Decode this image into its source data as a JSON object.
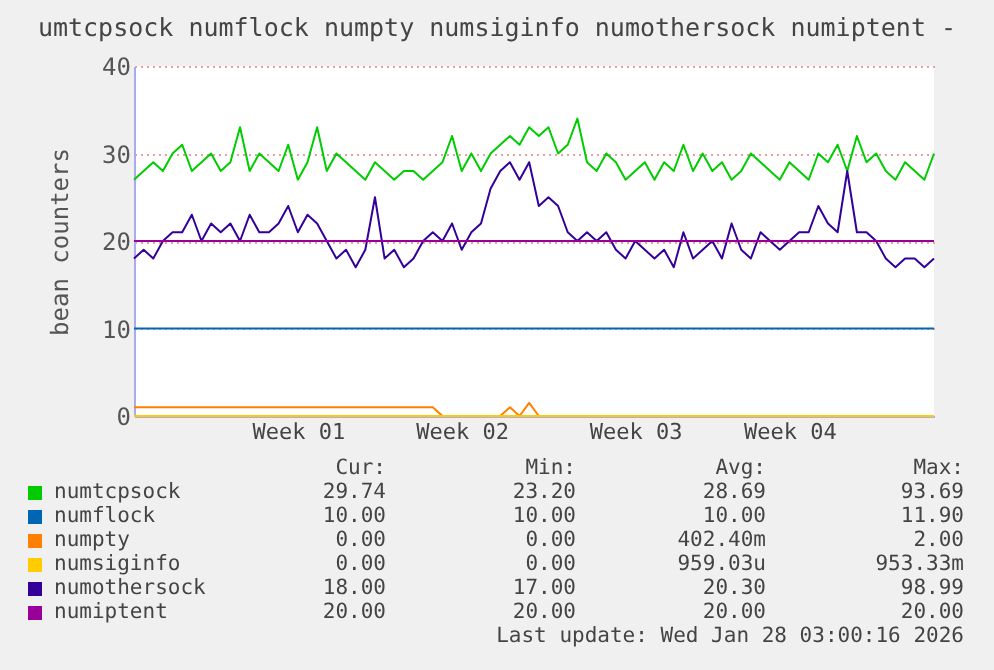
{
  "chart_data": {
    "type": "line",
    "title": "umtcpsock numflock numpty numsiginfo numothersock numiptent -",
    "ylabel": "bean counters",
    "categories": [
      null,
      null,
      null,
      null,
      null,
      null,
      null,
      null,
      null,
      null,
      null,
      null,
      null,
      null,
      null,
      null,
      null,
      "Week 01",
      null,
      null,
      null,
      null,
      null,
      null,
      null,
      null,
      null,
      null,
      null,
      null,
      null,
      null,
      null,
      null,
      "Week 02",
      null,
      null,
      null,
      null,
      null,
      null,
      null,
      null,
      null,
      null,
      null,
      null,
      null,
      null,
      null,
      null,
      null,
      "Week 03",
      null,
      null,
      null,
      null,
      null,
      null,
      null,
      null,
      null,
      null,
      null,
      null,
      null,
      null,
      null,
      "Week 04",
      null,
      null,
      null,
      null,
      null,
      null,
      null,
      null,
      null,
      null,
      null,
      null,
      null,
      null,
      null
    ],
    "ylim": [
      0,
      40
    ],
    "yticks": [
      0,
      10,
      20,
      30,
      40
    ],
    "grid": "y",
    "legend": "bottom",
    "marker": "none",
    "line_style": "solid",
    "series": [
      {
        "name": "numtcpsock",
        "color": "#00cc00",
        "values": [
          27,
          28,
          29,
          28,
          30,
          31,
          28,
          29,
          30,
          28,
          29,
          33,
          28,
          30,
          29,
          28,
          31,
          27,
          29,
          33,
          28,
          30,
          29,
          28,
          27,
          29,
          28,
          27,
          28,
          28,
          27,
          28,
          29,
          32,
          28,
          30,
          28,
          30,
          31,
          32,
          31,
          33,
          32,
          33,
          30,
          31,
          34,
          29,
          28,
          30,
          29,
          27,
          28,
          29,
          27,
          29,
          28,
          31,
          28,
          30,
          28,
          29,
          27,
          28,
          30,
          29,
          28,
          27,
          29,
          28,
          27,
          30,
          29,
          31,
          28,
          32,
          29,
          30,
          28,
          27,
          29,
          28,
          27,
          30
        ]
      },
      {
        "name": "numflock",
        "color": "#0066b3",
        "values": [
          10,
          10,
          10,
          10,
          10,
          10,
          10,
          10,
          10,
          10,
          10,
          10,
          10,
          10,
          10,
          10,
          10,
          10,
          10,
          10,
          10,
          10,
          10,
          10,
          10,
          10,
          10,
          10,
          10,
          10,
          10,
          10,
          10,
          10,
          10,
          10,
          10,
          10,
          10,
          10,
          10,
          10,
          10,
          10,
          10,
          10,
          10,
          10,
          10,
          10,
          10,
          10,
          10,
          10,
          10,
          10,
          10,
          10,
          10,
          10,
          10,
          10,
          10,
          10,
          10,
          10,
          10,
          10,
          10,
          10,
          10,
          10,
          10,
          10,
          10,
          10,
          10,
          10,
          10,
          10,
          10,
          10,
          10,
          10
        ]
      },
      {
        "name": "numpty",
        "color": "#ff8000",
        "values": [
          1,
          1,
          1,
          1,
          1,
          1,
          1,
          1,
          1,
          1,
          1,
          1,
          1,
          1,
          1,
          1,
          1,
          1,
          1,
          1,
          1,
          1,
          1,
          1,
          1,
          1,
          1,
          1,
          1,
          1,
          1,
          1,
          0,
          null,
          null,
          null,
          null,
          null,
          0,
          1,
          0,
          1.5,
          0,
          null,
          null,
          null,
          null,
          null,
          null,
          null,
          null,
          null,
          null,
          null,
          null,
          null,
          null,
          null,
          null,
          null,
          null,
          null,
          null,
          null,
          null,
          null,
          null,
          null,
          null,
          null,
          null,
          null,
          null,
          null,
          null,
          null,
          null,
          null,
          null,
          null,
          null,
          null,
          null,
          null
        ]
      },
      {
        "name": "numsiginfo",
        "color": "#ffcc00",
        "values": [
          0,
          0,
          0,
          0,
          0,
          0,
          0,
          0,
          0,
          0,
          0,
          0,
          0,
          0,
          0,
          0,
          0,
          0,
          0,
          0,
          0,
          0,
          0,
          0,
          0,
          0,
          0,
          0,
          0,
          0,
          0,
          0,
          0,
          0,
          0,
          0,
          0,
          0,
          0,
          0,
          0,
          0,
          0,
          0,
          0,
          0,
          0,
          0,
          0,
          0,
          0,
          0,
          0,
          0,
          0,
          0,
          0,
          0,
          0,
          0,
          0,
          0,
          0,
          0,
          0,
          0,
          0,
          0,
          0,
          0,
          0,
          0,
          0,
          0,
          0,
          0,
          0,
          0,
          0,
          0,
          0,
          0,
          0,
          0
        ]
      },
      {
        "name": "numothersock",
        "color": "#330099",
        "values": [
          18,
          19,
          18,
          20,
          21,
          21,
          23,
          20,
          22,
          21,
          22,
          20,
          23,
          21,
          21,
          22,
          24,
          21,
          23,
          22,
          20,
          18,
          19,
          17,
          19,
          25,
          18,
          19,
          17,
          18,
          20,
          21,
          20,
          22,
          19,
          21,
          22,
          26,
          28,
          29,
          27,
          29,
          24,
          25,
          24,
          21,
          20,
          21,
          20,
          21,
          19,
          18,
          20,
          19,
          18,
          19,
          17,
          21,
          18,
          19,
          20,
          18,
          22,
          19,
          18,
          21,
          20,
          19,
          20,
          21,
          21,
          24,
          22,
          21,
          28,
          21,
          21,
          20,
          18,
          17,
          18,
          18,
          17,
          18
        ]
      },
      {
        "name": "numiptent",
        "color": "#990099",
        "values": [
          20,
          20,
          20,
          20,
          20,
          20,
          20,
          20,
          20,
          20,
          20,
          20,
          20,
          20,
          20,
          20,
          20,
          20,
          20,
          20,
          20,
          20,
          20,
          20,
          20,
          20,
          20,
          20,
          20,
          20,
          20,
          20,
          20,
          20,
          20,
          20,
          20,
          20,
          20,
          20,
          20,
          20,
          20,
          20,
          20,
          20,
          20,
          20,
          20,
          20,
          20,
          20,
          20,
          20,
          20,
          20,
          20,
          20,
          20,
          20,
          20,
          20,
          20,
          20,
          20,
          20,
          20,
          20,
          20,
          20,
          20,
          20,
          20,
          20,
          20,
          20,
          20,
          20,
          20,
          20,
          20,
          20,
          20,
          20
        ]
      }
    ],
    "annotations": [
      "Cur:",
      "Min:",
      "Avg:",
      "Max:",
      "29.74",
      "23.20",
      "28.69",
      "93.69",
      "10.00",
      "10.00",
      "10.00",
      "11.90",
      "0.00",
      "0.00",
      "402.40m",
      "2.00",
      "0.00",
      "0.00",
      "959.03u",
      "953.33m",
      "18.00",
      "17.00",
      "20.30",
      "98.99",
      "20.00",
      "20.00",
      "20.00",
      "20.00",
      "Last update: Wed Jan 28 03:00:16 2026"
    ]
  }
}
